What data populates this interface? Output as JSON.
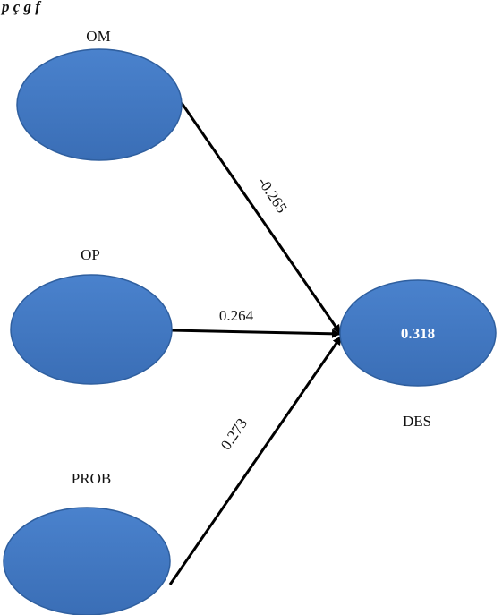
{
  "caption": "p       ç   g   f",
  "constructs": {
    "om": {
      "label": "OM"
    },
    "op": {
      "label": "OP"
    },
    "prob": {
      "label": "PROB"
    },
    "des": {
      "label": "DES",
      "r_squared": "0.318"
    }
  },
  "paths": {
    "om_des": "-0.265",
    "op_des": "0.264",
    "prob_des": "0.273"
  },
  "colors": {
    "node_fill": "#3f77c3",
    "node_stroke": "#2f5f9f",
    "arrow": "#000000"
  }
}
